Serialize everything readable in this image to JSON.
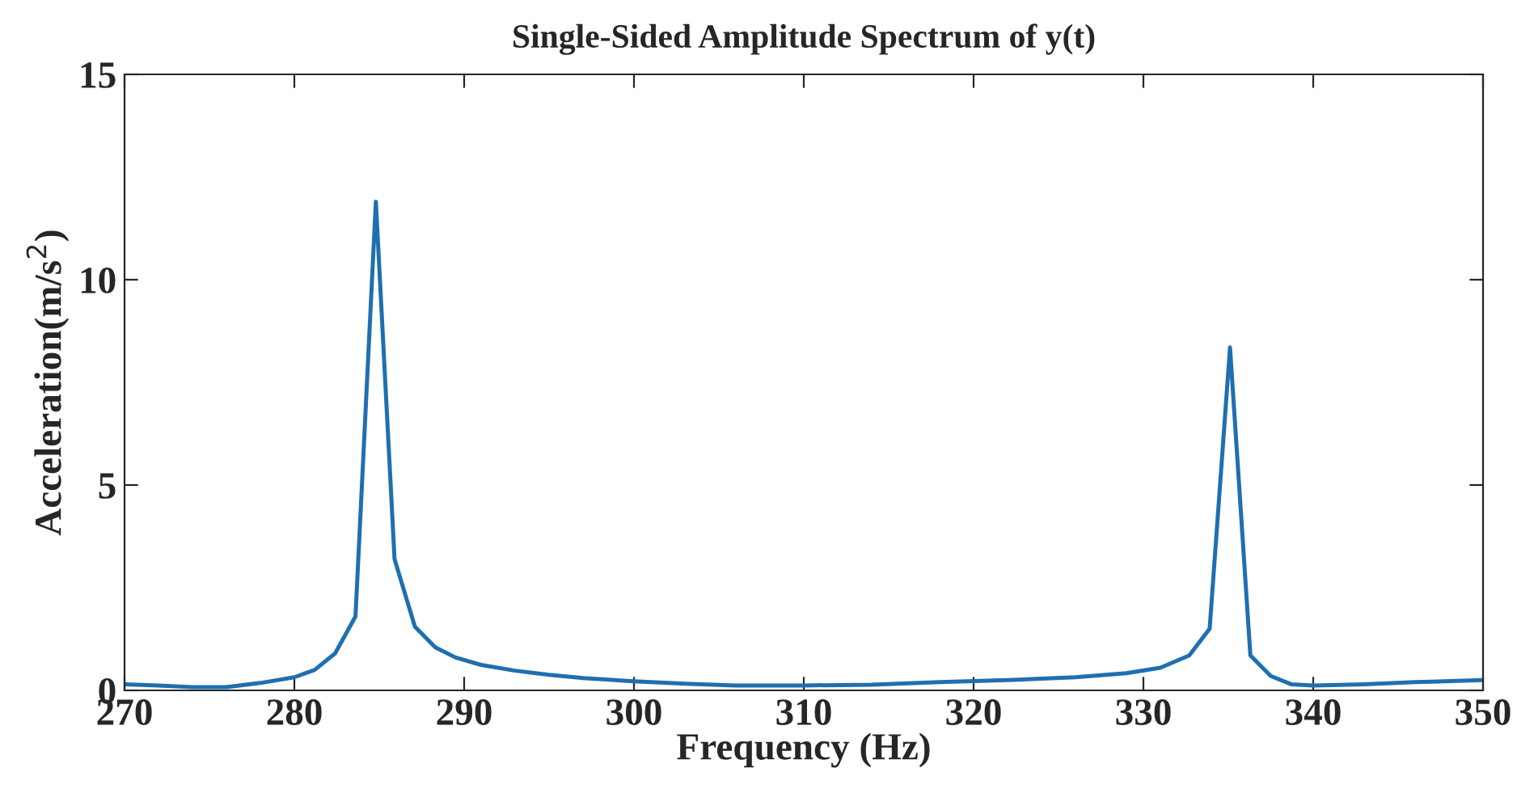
{
  "chart_data": {
    "type": "line",
    "title": "Single-Sided Amplitude Spectrum of y(t)",
    "xlabel": "Frequency (Hz)",
    "ylabel": "Acceleration(m/s$^{2}$)",
    "xlim": [
      270,
      350
    ],
    "ylim": [
      0,
      15
    ],
    "xticks": [
      270,
      280,
      290,
      300,
      310,
      320,
      330,
      340,
      350
    ],
    "yticks": [
      0,
      5,
      10,
      15
    ],
    "grid": false,
    "series": [
      {
        "color": "#1f6fb0",
        "x": [
          270,
          272,
          274,
          276,
          278,
          280,
          281.2,
          282.4,
          283.6,
          284.8,
          285.9,
          287.1,
          288.3,
          289.5,
          291,
          293,
          295,
          297,
          300,
          303,
          306,
          310,
          314,
          318,
          322,
          326,
          329,
          331,
          332.7,
          333.9,
          335.1,
          336.3,
          337.5,
          338.7,
          340,
          343,
          346,
          350
        ],
        "values": [
          0.15,
          0.12,
          0.08,
          0.08,
          0.18,
          0.32,
          0.5,
          0.9,
          1.8,
          11.9,
          3.2,
          1.55,
          1.05,
          0.8,
          0.62,
          0.48,
          0.38,
          0.3,
          0.22,
          0.16,
          0.12,
          0.12,
          0.14,
          0.2,
          0.25,
          0.32,
          0.42,
          0.55,
          0.85,
          1.5,
          8.35,
          0.85,
          0.35,
          0.15,
          0.12,
          0.15,
          0.2,
          0.25
        ]
      }
    ]
  }
}
